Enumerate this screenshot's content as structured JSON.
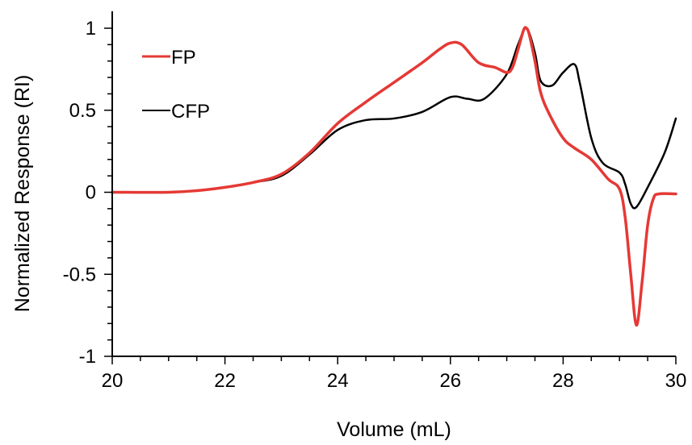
{
  "chart_data": {
    "type": "line",
    "title": "",
    "xlabel": "Volume (mL)",
    "ylabel": "Normalized Response (RI)",
    "xlim": [
      20,
      30
    ],
    "ylim": [
      -1,
      1.05
    ],
    "xticks": [
      20,
      22,
      24,
      26,
      28,
      30
    ],
    "xtick_labels": [
      "20",
      "22",
      "24",
      "26",
      "28",
      "30"
    ],
    "yticks": [
      -1,
      -0.5,
      0,
      0.5,
      1
    ],
    "ytick_labels": [
      "-1",
      "-0.5",
      "0",
      "0.5",
      "1"
    ],
    "grid": false,
    "legend": "top-left",
    "series": [
      {
        "name": "FP",
        "color": "#e53935",
        "x": [
          20,
          21,
          21.5,
          22,
          22.5,
          23,
          23.5,
          24,
          24.5,
          25,
          25.5,
          25.8,
          26,
          26.2,
          26.5,
          26.8,
          27,
          27.1,
          27.2,
          27.3,
          27.35,
          27.4,
          27.5,
          27.6,
          27.75,
          28,
          28.2,
          28.5,
          28.8,
          29.0,
          29.1,
          29.2,
          29.3,
          29.4,
          29.5,
          29.6,
          29.7,
          30
        ],
        "y": [
          0,
          0,
          0.01,
          0.03,
          0.06,
          0.11,
          0.24,
          0.42,
          0.55,
          0.67,
          0.79,
          0.87,
          0.91,
          0.9,
          0.79,
          0.76,
          0.73,
          0.76,
          0.87,
          0.99,
          1.0,
          0.96,
          0.8,
          0.61,
          0.48,
          0.33,
          0.27,
          0.2,
          0.08,
          0.02,
          -0.15,
          -0.5,
          -0.81,
          -0.55,
          -0.2,
          -0.04,
          -0.01,
          -0.01
        ]
      },
      {
        "name": "CFP",
        "color": "#000000",
        "x": [
          20,
          21,
          21.5,
          22,
          22.5,
          23,
          23.5,
          24,
          24.5,
          25,
          25.5,
          26,
          26.3,
          26.6,
          27,
          27.2,
          27.35,
          27.5,
          27.6,
          27.8,
          28,
          28.2,
          28.3,
          28.5,
          28.7,
          29,
          29.1,
          29.2,
          29.3,
          29.5,
          29.8,
          30
        ],
        "y": [
          0,
          0,
          0.01,
          0.03,
          0.06,
          0.1,
          0.23,
          0.38,
          0.44,
          0.45,
          0.49,
          0.58,
          0.57,
          0.57,
          0.72,
          0.9,
          1.0,
          0.85,
          0.68,
          0.65,
          0.73,
          0.78,
          0.66,
          0.33,
          0.18,
          0.12,
          0.05,
          -0.07,
          -0.09,
          0.03,
          0.24,
          0.45
        ]
      }
    ]
  }
}
